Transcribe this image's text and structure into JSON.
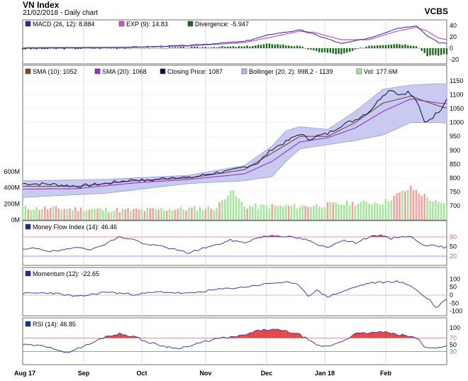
{
  "header": {
    "title": "VN Index",
    "subtitle": "21/02/2018 - Daily chart",
    "brand": "VCBS"
  },
  "colors": {
    "close": "#1a1a5e",
    "sma10": "#7a4a2a",
    "sma20": "#9b30d0",
    "band_fill": "#c9caf0",
    "band_line": "#9a9ae0",
    "vol_up": "#a8e6a0",
    "vol_down": "#f2a2a2",
    "macd": "#1c2c9c",
    "exp": "#d050d0",
    "divergence": "#1a6a1a",
    "indicator_line": "#4a38b0",
    "overbought_fill": "#e04848",
    "ref80": "#e07070",
    "ref20": "#7070e0",
    "zero": "#b0b0b0"
  },
  "x_axis": {
    "labels": [
      "Aug 17",
      "Sep",
      "Oct",
      "Nov",
      "Dec",
      "Jan 18",
      "Feb"
    ]
  },
  "panels": {
    "macd": {
      "legend": [
        {
          "icon": "macd-legend-swatch",
          "color": "#1c2c9c",
          "text": "MACD (26, 12): 8.884"
        },
        {
          "icon": "exp-legend-swatch",
          "color": "#d050d0",
          "text": "EXP (9): 14.83"
        },
        {
          "icon": "divergence-legend-swatch",
          "color": "#1a6a1a",
          "text": "Divergence: -5.947"
        }
      ],
      "ticks": [
        "40",
        "20",
        "0",
        "-20"
      ]
    },
    "price": {
      "legend": [
        {
          "icon": "sma10-legend-swatch",
          "color": "#7a4a2a",
          "text": "SMA (10): 1052"
        },
        {
          "icon": "sma20-legend-swatch",
          "color": "#9b30d0",
          "text": "SMA (20): 1068"
        },
        {
          "icon": "close-legend-swatch",
          "color": "#111133",
          "text": "Closing Price: 1087"
        },
        {
          "icon": "bollinger-legend-swatch",
          "color": "#b8b8f0",
          "text": "Bollinger (20, 2): 998.2 - 1139"
        },
        {
          "icon": "vol-legend-swatch",
          "color": "#a8e6a0",
          "text": "Vol: 177.6M"
        }
      ],
      "ticks": [
        "1150",
        "1100",
        "1050",
        "1000",
        "950",
        "900",
        "850",
        "800",
        "750",
        "700"
      ],
      "vol_ticks": [
        "600M",
        "400M",
        "200M",
        "0M"
      ]
    },
    "mfi": {
      "legend": [
        {
          "icon": "mfi-legend-swatch",
          "color": "#1c2c9c",
          "text": "Money Flow Index (14): 46.46"
        }
      ],
      "ticks": [
        "80",
        "50",
        "20"
      ]
    },
    "momentum": {
      "legend": [
        {
          "icon": "momentum-legend-swatch",
          "color": "#1c2c9c",
          "text": "Momentum (12): -22.65"
        }
      ],
      "ticks": [
        "100",
        "50",
        "0",
        "-50",
        "-100"
      ]
    },
    "rsi": {
      "legend": [
        {
          "icon": "rsi-legend-swatch",
          "color": "#1c2c9c",
          "text": "RSI (14): 46.85"
        }
      ],
      "ticks": [
        "100",
        "70",
        "50",
        "30"
      ]
    }
  },
  "chart_data": {
    "type": "line",
    "x_labels": [
      "Aug 17",
      "Sep",
      "Oct",
      "Nov",
      "Dec",
      "Jan 18",
      "Feb"
    ],
    "price_ylim": [
      700,
      1150
    ],
    "volume_ylim_millions": [
      0,
      600
    ],
    "close_keypoints": [
      [
        0,
        780
      ],
      [
        10,
        778
      ],
      [
        20,
        770
      ],
      [
        30,
        780
      ],
      [
        40,
        795
      ],
      [
        45,
        790
      ],
      [
        55,
        805
      ],
      [
        60,
        800
      ],
      [
        70,
        820
      ],
      [
        75,
        825
      ],
      [
        80,
        840
      ],
      [
        85,
        855
      ],
      [
        90,
        905
      ],
      [
        95,
        930
      ],
      [
        100,
        960
      ],
      [
        103,
        940
      ],
      [
        106,
        950
      ],
      [
        110,
        960
      ],
      [
        115,
        990
      ],
      [
        120,
        1010
      ],
      [
        125,
        1040
      ],
      [
        128,
        1075
      ],
      [
        130,
        1100
      ],
      [
        133,
        1120
      ],
      [
        136,
        1100
      ],
      [
        139,
        1110
      ],
      [
        142,
        1080
      ],
      [
        145,
        1000
      ],
      [
        148,
        1020
      ],
      [
        151,
        1050
      ],
      [
        153,
        1087
      ]
    ],
    "sma10_keypoints": [
      [
        0,
        770
      ],
      [
        20,
        770
      ],
      [
        40,
        790
      ],
      [
        60,
        800
      ],
      [
        80,
        830
      ],
      [
        90,
        890
      ],
      [
        100,
        950
      ],
      [
        110,
        950
      ],
      [
        120,
        1000
      ],
      [
        130,
        1070
      ],
      [
        140,
        1095
      ],
      [
        150,
        1060
      ],
      [
        153,
        1052
      ]
    ],
    "sma20_keypoints": [
      [
        0,
        760
      ],
      [
        20,
        762
      ],
      [
        40,
        782
      ],
      [
        60,
        795
      ],
      [
        80,
        815
      ],
      [
        90,
        860
      ],
      [
        100,
        930
      ],
      [
        110,
        945
      ],
      [
        120,
        980
      ],
      [
        130,
        1040
      ],
      [
        140,
        1085
      ],
      [
        150,
        1070
      ],
      [
        153,
        1068
      ]
    ],
    "boll_upper_keypoints": [
      [
        0,
        790
      ],
      [
        30,
        795
      ],
      [
        60,
        810
      ],
      [
        80,
        845
      ],
      [
        90,
        915
      ],
      [
        95,
        970
      ],
      [
        100,
        985
      ],
      [
        110,
        975
      ],
      [
        120,
        1040
      ],
      [
        130,
        1120
      ],
      [
        140,
        1135
      ],
      [
        150,
        1140
      ],
      [
        153,
        1139
      ]
    ],
    "boll_lower_keypoints": [
      [
        0,
        730
      ],
      [
        30,
        745
      ],
      [
        60,
        780
      ],
      [
        80,
        790
      ],
      [
        90,
        805
      ],
      [
        95,
        860
      ],
      [
        100,
        905
      ],
      [
        110,
        920
      ],
      [
        120,
        935
      ],
      [
        130,
        955
      ],
      [
        140,
        1000
      ],
      [
        150,
        1000
      ],
      [
        153,
        998
      ]
    ],
    "volume_keypoints": [
      [
        0,
        150
      ],
      [
        40,
        120
      ],
      [
        70,
        150
      ],
      [
        75,
        380
      ],
      [
        80,
        170
      ],
      [
        100,
        170
      ],
      [
        120,
        210
      ],
      [
        130,
        220
      ],
      [
        140,
        400
      ],
      [
        150,
        200
      ],
      [
        153,
        178
      ]
    ],
    "macd": {
      "ylim": [
        -25,
        45
      ],
      "macd_keypoints": [
        [
          0,
          0
        ],
        [
          40,
          2
        ],
        [
          60,
          5
        ],
        [
          80,
          12
        ],
        [
          90,
          25
        ],
        [
          100,
          32
        ],
        [
          105,
          25
        ],
        [
          115,
          8
        ],
        [
          125,
          18
        ],
        [
          135,
          35
        ],
        [
          142,
          40
        ],
        [
          146,
          22
        ],
        [
          150,
          10
        ],
        [
          153,
          9
        ]
      ],
      "exp_keypoints": [
        [
          0,
          1
        ],
        [
          40,
          2
        ],
        [
          60,
          4
        ],
        [
          80,
          10
        ],
        [
          90,
          20
        ],
        [
          100,
          30
        ],
        [
          105,
          28
        ],
        [
          115,
          15
        ],
        [
          125,
          15
        ],
        [
          135,
          30
        ],
        [
          142,
          37
        ],
        [
          146,
          30
        ],
        [
          150,
          18
        ],
        [
          153,
          15
        ]
      ]
    },
    "mfi": {
      "ylim": [
        0,
        100
      ],
      "keypoints": [
        [
          0,
          40
        ],
        [
          5,
          45
        ],
        [
          10,
          35
        ],
        [
          15,
          38
        ],
        [
          20,
          50
        ],
        [
          25,
          40
        ],
        [
          30,
          60
        ],
        [
          35,
          80
        ],
        [
          40,
          72
        ],
        [
          45,
          55
        ],
        [
          50,
          52
        ],
        [
          55,
          40
        ],
        [
          60,
          30
        ],
        [
          65,
          45
        ],
        [
          70,
          55
        ],
        [
          75,
          70
        ],
        [
          80,
          62
        ],
        [
          85,
          78
        ],
        [
          90,
          85
        ],
        [
          95,
          82
        ],
        [
          100,
          75
        ],
        [
          103,
          70
        ],
        [
          106,
          55
        ],
        [
          110,
          48
        ],
        [
          115,
          70
        ],
        [
          120,
          62
        ],
        [
          125,
          80
        ],
        [
          130,
          85
        ],
        [
          133,
          75
        ],
        [
          136,
          82
        ],
        [
          140,
          80
        ],
        [
          145,
          55
        ],
        [
          150,
          50
        ],
        [
          153,
          46.46
        ]
      ]
    },
    "momentum": {
      "ylim": [
        -110,
        110
      ],
      "keypoints": [
        [
          0,
          10
        ],
        [
          10,
          15
        ],
        [
          20,
          -10
        ],
        [
          30,
          20
        ],
        [
          40,
          5
        ],
        [
          50,
          20
        ],
        [
          60,
          10
        ],
        [
          70,
          35
        ],
        [
          80,
          50
        ],
        [
          90,
          75
        ],
        [
          95,
          80
        ],
        [
          100,
          60
        ],
        [
          103,
          -5
        ],
        [
          106,
          30
        ],
        [
          110,
          -10
        ],
        [
          115,
          20
        ],
        [
          120,
          50
        ],
        [
          125,
          75
        ],
        [
          130,
          80
        ],
        [
          135,
          85
        ],
        [
          140,
          60
        ],
        [
          145,
          -10
        ],
        [
          147,
          -30
        ],
        [
          149,
          -80
        ],
        [
          151,
          -50
        ],
        [
          153,
          -22.65
        ]
      ]
    },
    "rsi": {
      "ylim": [
        0,
        100
      ],
      "keypoints": [
        [
          0,
          50
        ],
        [
          10,
          45
        ],
        [
          15,
          25
        ],
        [
          20,
          40
        ],
        [
          25,
          55
        ],
        [
          30,
          75
        ],
        [
          35,
          82
        ],
        [
          40,
          75
        ],
        [
          45,
          58
        ],
        [
          50,
          48
        ],
        [
          55,
          40
        ],
        [
          60,
          45
        ],
        [
          65,
          58
        ],
        [
          70,
          68
        ],
        [
          75,
          72
        ],
        [
          80,
          78
        ],
        [
          85,
          92
        ],
        [
          90,
          95
        ],
        [
          95,
          90
        ],
        [
          100,
          80
        ],
        [
          103,
          65
        ],
        [
          106,
          48
        ],
        [
          110,
          45
        ],
        [
          115,
          60
        ],
        [
          120,
          82
        ],
        [
          125,
          85
        ],
        [
          130,
          88
        ],
        [
          135,
          80
        ],
        [
          140,
          75
        ],
        [
          143,
          65
        ],
        [
          145,
          45
        ],
        [
          148,
          40
        ],
        [
          151,
          42
        ],
        [
          153,
          46.85
        ]
      ]
    },
    "last_values": {
      "macd": 8.884,
      "exp": 14.83,
      "divergence": -5.947,
      "sma10": 1052,
      "sma20": 1068,
      "close": 1087,
      "boll_low": 998.2,
      "boll_high": 1139,
      "volume_millions": 177.6,
      "mfi": 46.46,
      "momentum": -22.65,
      "rsi": 46.85
    }
  }
}
